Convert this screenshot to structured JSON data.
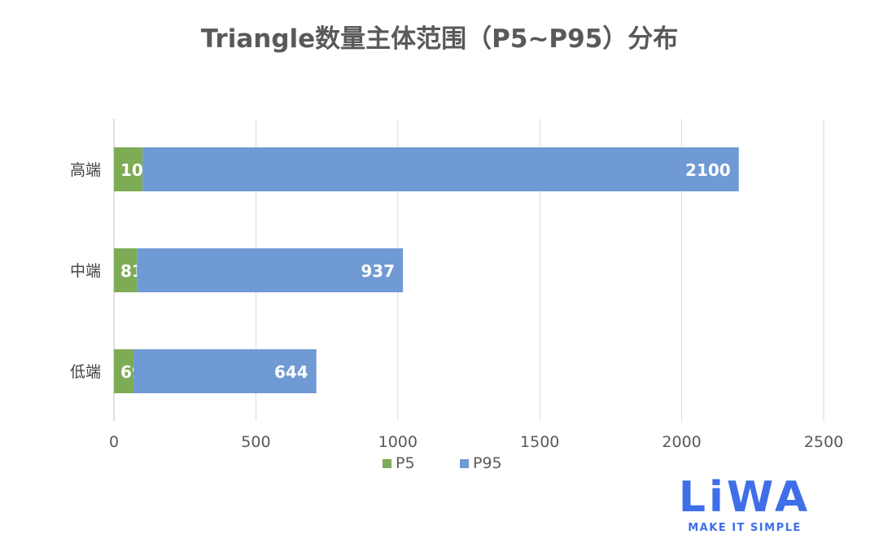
{
  "chart_data": {
    "type": "bar",
    "orientation": "horizontal",
    "stacked": true,
    "title": "Triangle数量主体范围（P5~P95）分布",
    "categories": [
      "高端",
      "中端",
      "低端"
    ],
    "series": [
      {
        "name": "P5",
        "color": "#7eab55",
        "values": [
          101,
          81,
          69
        ]
      },
      {
        "name": "P95",
        "color": "#6f9ad4",
        "values": [
          2100,
          937,
          644
        ]
      }
    ],
    "xlim": [
      0,
      2500
    ],
    "xticks": [
      "0",
      "500",
      "1000",
      "1500",
      "2000",
      "2500"
    ],
    "grid": true,
    "legend": "bottom"
  },
  "logo": {
    "text": "LiWA",
    "tagline": "MAKE IT SIMPLE"
  }
}
